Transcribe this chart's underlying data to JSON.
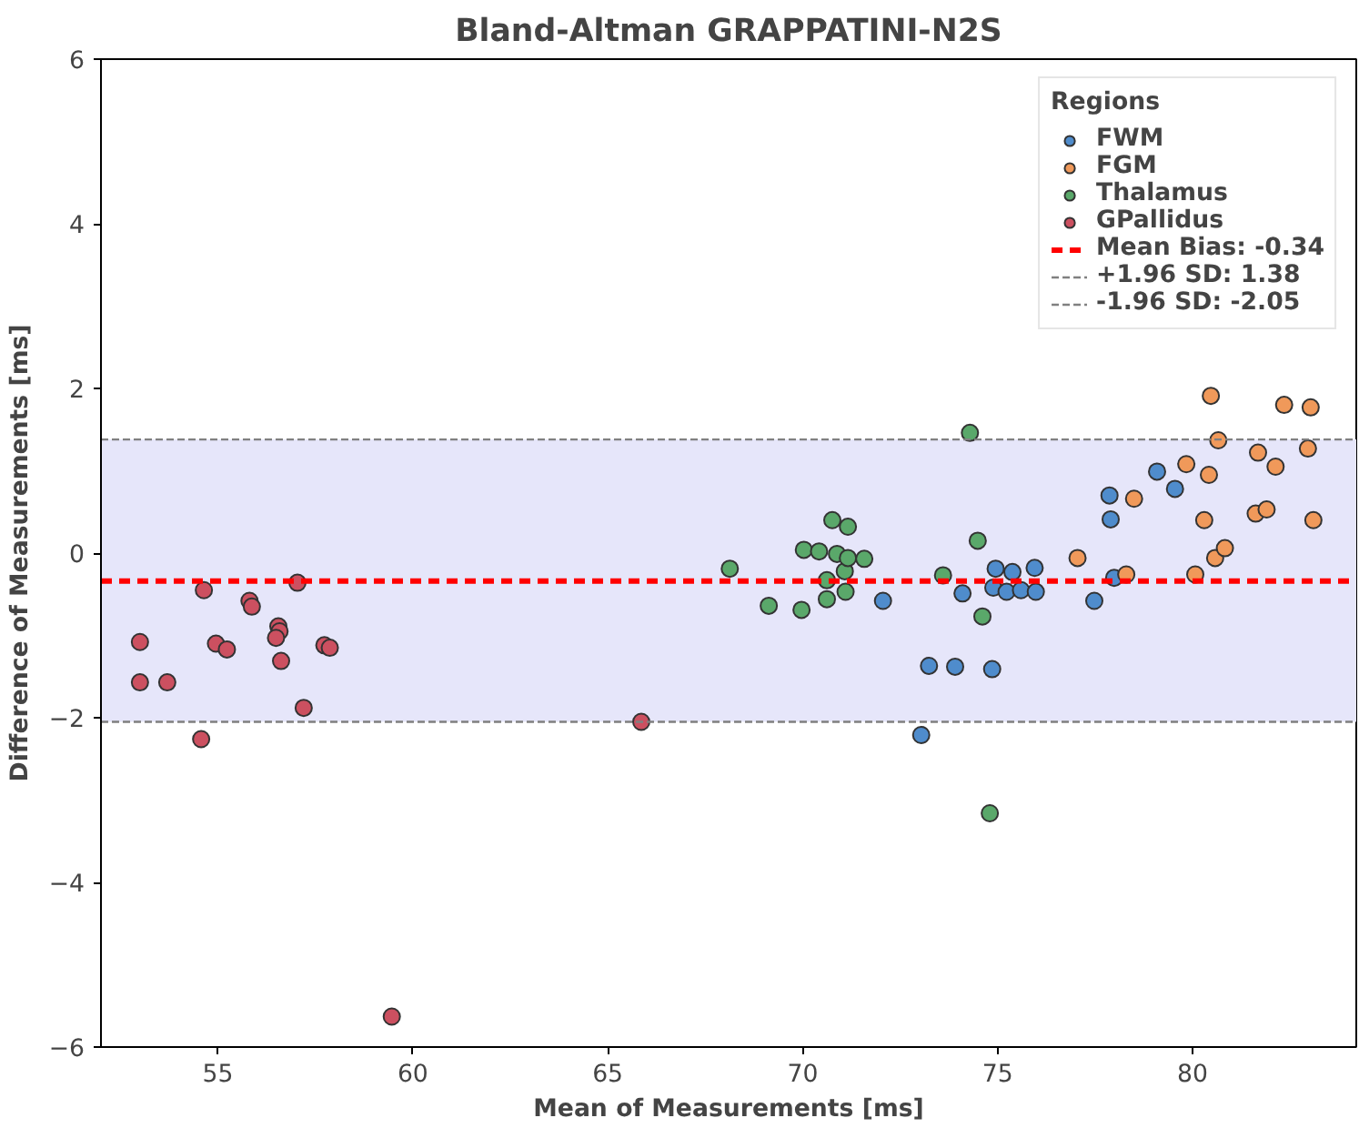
{
  "chart_data": {
    "type": "scatter",
    "title": "Bland-Altman GRAPPATINI-N2S",
    "xlabel": "Mean of Measurements [ms]",
    "ylabel": "Difference of Measurements [ms]",
    "legend_title": "Regions",
    "legend": "top right",
    "grid": false,
    "marker": "circle",
    "xlim": [
      52,
      84.2
    ],
    "ylim": [
      -6,
      6
    ],
    "xticks": [
      55,
      60,
      65,
      70,
      75,
      80
    ],
    "yticks": [
      {
        "value": -6,
        "label": "−6"
      },
      {
        "value": -4,
        "label": "−4"
      },
      {
        "value": -2,
        "label": "−2"
      },
      0,
      2,
      4,
      6
    ],
    "series": [
      {
        "name": "FWM",
        "color": "#4f8ccc",
        "x": [
          72.06,
          73.24,
          73.91,
          74.86,
          74.1,
          74.95,
          74.89,
          75.23,
          75.38,
          75.6,
          75.98,
          75.95,
          73.04,
          77.48,
          77.99,
          77.9,
          77.87,
          79.09,
          79.55
        ],
        "values": [
          -0.58,
          -1.37,
          -1.38,
          -1.41,
          -0.49,
          -0.19,
          -0.42,
          -0.47,
          -0.23,
          -0.45,
          -0.47,
          -0.18,
          -2.21,
          -0.58,
          -0.3,
          0.41,
          0.7,
          0.99,
          0.78
        ]
      },
      {
        "name": "FGM",
        "color": "#f0995a",
        "x": [
          77.05,
          78.3,
          78.5,
          79.84,
          80.07,
          80.42,
          80.3,
          80.47,
          80.66,
          80.58,
          80.83,
          81.62,
          81.9,
          81.68,
          82.13,
          82.35,
          83.03,
          82.96,
          83.1
        ],
        "values": [
          -0.06,
          -0.26,
          0.66,
          1.08,
          -0.26,
          0.95,
          0.4,
          1.91,
          1.37,
          -0.06,
          0.06,
          0.48,
          0.53,
          1.22,
          1.05,
          1.8,
          1.77,
          1.27,
          0.4
        ]
      },
      {
        "name": "Thalamus",
        "color": "#5aa86a",
        "x": [
          68.13,
          69.13,
          69.97,
          70.03,
          70.42,
          70.62,
          70.62,
          70.76,
          70.88,
          71.1,
          71.08,
          71.16,
          71.16,
          71.58,
          73.6,
          74.29,
          74.49,
          74.61,
          74.8
        ],
        "values": [
          -0.19,
          -0.64,
          -0.69,
          0.04,
          0.02,
          -0.56,
          -0.33,
          0.4,
          -0.01,
          -0.47,
          -0.22,
          -0.06,
          0.32,
          -0.07,
          -0.27,
          1.46,
          0.15,
          -0.77,
          -3.16
        ]
      },
      {
        "name": "GPallidus",
        "color": "#cc5060",
        "x": [
          53.0,
          53.0,
          53.7,
          54.64,
          54.95,
          55.23,
          54.57,
          55.81,
          55.87,
          56.55,
          56.58,
          56.49,
          56.62,
          57.04,
          57.2,
          57.73,
          57.87,
          59.46,
          65.86
        ],
        "values": [
          -1.08,
          -1.57,
          -1.57,
          -0.45,
          -1.1,
          -1.17,
          -2.26,
          -0.58,
          -0.65,
          -0.89,
          -0.95,
          -1.03,
          -1.31,
          -0.36,
          -1.88,
          -1.12,
          -1.15,
          -5.63,
          -2.05
        ]
      }
    ],
    "bands": [
      {
        "axis": "y",
        "from": -2.05,
        "to": 1.38,
        "color": "#e6e6fa"
      }
    ],
    "ref_lines": [
      {
        "axis": "y",
        "value": -0.34,
        "label": "Mean Bias: -0.34",
        "color": "#ff0000",
        "line_style": "dashed"
      },
      {
        "axis": "y",
        "value": 1.38,
        "label": "+1.96 SD: 1.38",
        "color": "#808080",
        "line_style": "dashed"
      },
      {
        "axis": "y",
        "value": -2.05,
        "label": "-1.96 SD: -2.05",
        "color": "#808080",
        "line_style": "dashed"
      }
    ]
  }
}
